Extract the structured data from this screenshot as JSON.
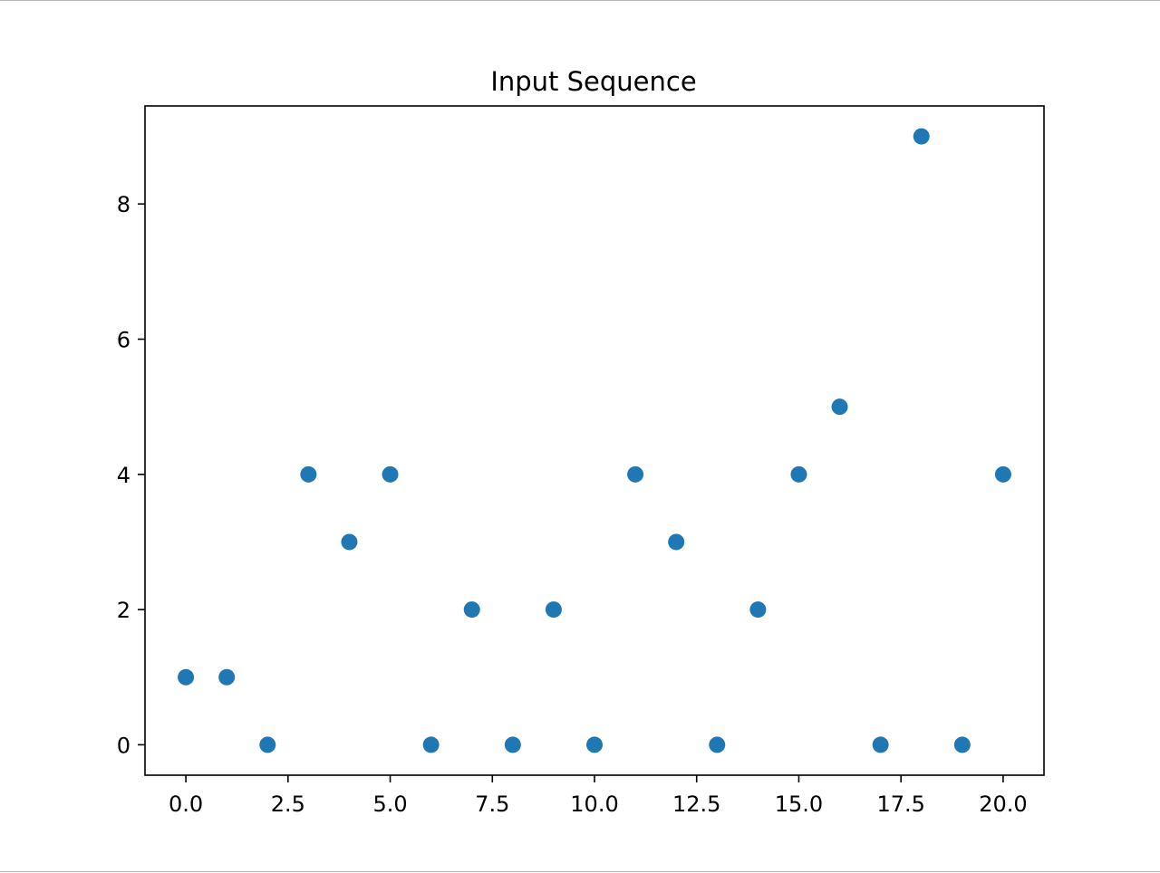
{
  "chart_data": {
    "type": "scatter",
    "title": "Input Sequence",
    "xlabel": "",
    "ylabel": "",
    "x": [
      0,
      1,
      2,
      3,
      4,
      5,
      6,
      7,
      8,
      9,
      10,
      11,
      12,
      13,
      14,
      15,
      16,
      17,
      18,
      19,
      20
    ],
    "y": [
      1,
      1,
      0,
      4,
      3,
      4,
      0,
      2,
      0,
      2,
      0,
      4,
      3,
      0,
      2,
      4,
      5,
      0,
      9,
      0,
      4
    ],
    "xlim": [
      -1,
      21
    ],
    "ylim": [
      -0.45,
      9.45
    ],
    "xticks": [
      0.0,
      2.5,
      5.0,
      7.5,
      10.0,
      12.5,
      15.0,
      17.5,
      20.0
    ],
    "xtick_labels": [
      "0.0",
      "2.5",
      "5.0",
      "7.5",
      "10.0",
      "12.5",
      "15.0",
      "17.5",
      "20.0"
    ],
    "yticks": [
      0,
      2,
      4,
      6,
      8
    ],
    "ytick_labels": [
      "0",
      "2",
      "4",
      "6",
      "8"
    ],
    "grid": false,
    "legend": "none",
    "marker_color": "#1f77b4"
  }
}
